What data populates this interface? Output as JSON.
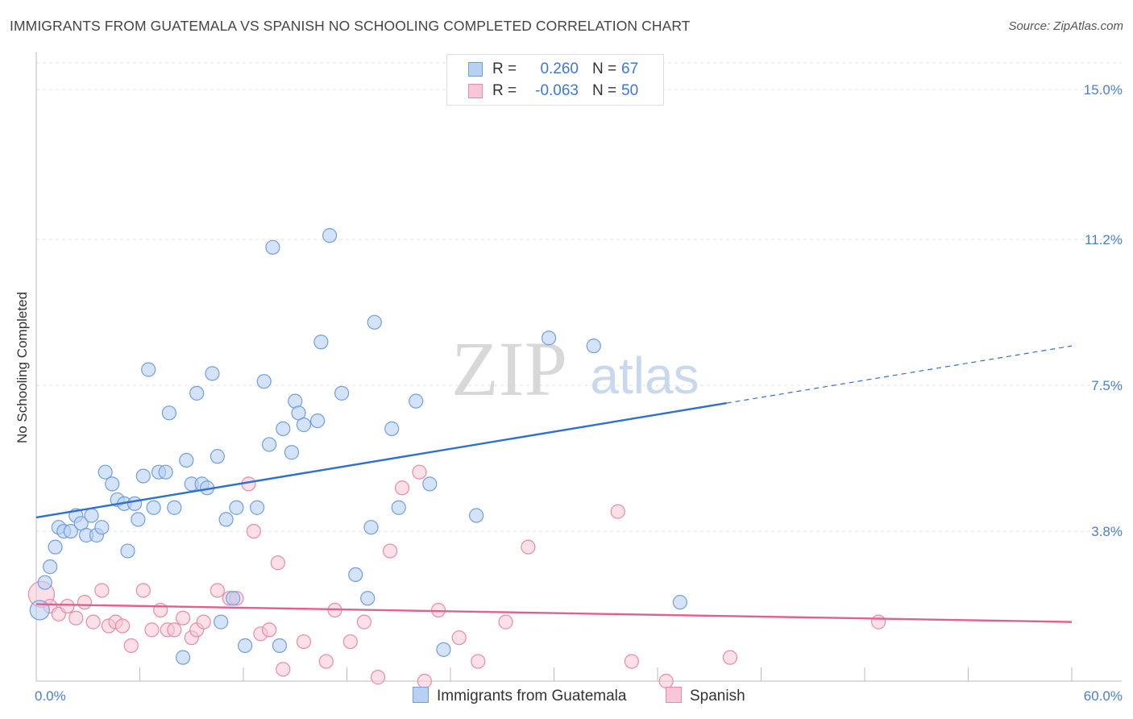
{
  "header": {
    "title": "IMMIGRANTS FROM GUATEMALA VS SPANISH NO SCHOOLING COMPLETED CORRELATION CHART",
    "source": "Source: ZipAtlas.com"
  },
  "watermark": {
    "zip": "ZIP",
    "atlas": "atlas"
  },
  "legend": {
    "rows": [
      {
        "r_label": "R =",
        "r_value": "0.260",
        "n_label": "N =",
        "n_value": "67"
      },
      {
        "r_label": "R =",
        "r_value": "-0.063",
        "n_label": "N =",
        "n_value": "50"
      }
    ]
  },
  "bottom_legend": {
    "series1": "Immigrants from Guatemala",
    "series2": "Spanish"
  },
  "colors": {
    "blue_fill": "#b8d0f4",
    "blue_stroke": "#6f9fe0",
    "blue_line": "#2f6fd0",
    "pink_fill": "#f8c6d6",
    "pink_stroke": "#e98aa8",
    "pink_line": "#e0628c",
    "axis_text": "#4a7fd0"
  },
  "chart_data": {
    "type": "scatter",
    "title": "IMMIGRANTS FROM GUATEMALA VS SPANISH NO SCHOOLING COMPLETED CORRELATION CHART",
    "xlabel": "",
    "ylabel": "No Schooling Completed",
    "xlim": [
      0,
      60
    ],
    "ylim": [
      0,
      15.8
    ],
    "x_tick_labels": [
      "0.0%",
      "60.0%"
    ],
    "y_ticks": [
      3.8,
      7.5,
      11.2,
      15.0
    ],
    "y_tick_labels": [
      "3.8%",
      "7.5%",
      "11.2%",
      "15.0%"
    ],
    "grid": "horizontal dashed",
    "legend_position": "top-center",
    "series": [
      {
        "name": "Immigrants from Guatemala",
        "r": 0.26,
        "n": 67,
        "trend": {
          "x0": 0,
          "y0": 4.15,
          "x1": 40,
          "y1": 7.05,
          "dashed_to_x": 60,
          "dashed_to_y": 8.5
        },
        "points": [
          [
            0.2,
            1.8
          ],
          [
            0.5,
            2.5
          ],
          [
            0.8,
            2.9
          ],
          [
            1.1,
            3.4
          ],
          [
            1.3,
            3.9
          ],
          [
            1.6,
            3.8
          ],
          [
            2.0,
            3.8
          ],
          [
            2.3,
            4.2
          ],
          [
            2.6,
            4.0
          ],
          [
            2.9,
            3.7
          ],
          [
            3.2,
            4.2
          ],
          [
            3.5,
            3.7
          ],
          [
            3.8,
            3.9
          ],
          [
            4.0,
            5.3
          ],
          [
            4.4,
            5.0
          ],
          [
            4.7,
            4.6
          ],
          [
            5.1,
            4.5
          ],
          [
            5.3,
            3.3
          ],
          [
            5.7,
            4.5
          ],
          [
            5.9,
            4.1
          ],
          [
            6.2,
            5.2
          ],
          [
            6.5,
            7.9
          ],
          [
            6.8,
            4.4
          ],
          [
            7.1,
            5.3
          ],
          [
            7.5,
            5.3
          ],
          [
            7.7,
            6.8
          ],
          [
            8.0,
            4.4
          ],
          [
            8.7,
            5.6
          ],
          [
            9.0,
            5.0
          ],
          [
            9.3,
            7.3
          ],
          [
            9.6,
            5.0
          ],
          [
            9.9,
            4.9
          ],
          [
            10.2,
            7.8
          ],
          [
            10.5,
            5.7
          ],
          [
            10.7,
            1.5
          ],
          [
            11.0,
            4.1
          ],
          [
            11.4,
            2.1
          ],
          [
            11.6,
            4.4
          ],
          [
            12.1,
            0.9
          ],
          [
            12.8,
            4.4
          ],
          [
            13.2,
            7.6
          ],
          [
            13.5,
            6.0
          ],
          [
            13.7,
            11.0
          ],
          [
            14.1,
            0.9
          ],
          [
            14.3,
            6.4
          ],
          [
            14.8,
            5.8
          ],
          [
            15.0,
            7.1
          ],
          [
            15.2,
            6.8
          ],
          [
            15.5,
            6.5
          ],
          [
            16.3,
            6.6
          ],
          [
            16.5,
            8.6
          ],
          [
            17.0,
            11.3
          ],
          [
            17.7,
            7.3
          ],
          [
            18.5,
            2.7
          ],
          [
            19.2,
            2.1
          ],
          [
            19.4,
            3.9
          ],
          [
            19.6,
            9.1
          ],
          [
            20.6,
            6.4
          ],
          [
            21.0,
            4.4
          ],
          [
            22.0,
            7.1
          ],
          [
            22.8,
            5.0
          ],
          [
            23.6,
            0.8
          ],
          [
            25.5,
            4.2
          ],
          [
            29.7,
            8.7
          ],
          [
            32.3,
            8.5
          ],
          [
            37.3,
            2.0
          ],
          [
            8.5,
            0.6
          ]
        ]
      },
      {
        "name": "Spanish",
        "r": -0.063,
        "n": 50,
        "trend": {
          "x0": 0,
          "y0": 1.95,
          "x1": 60,
          "y1": 1.5
        },
        "points": [
          [
            0.3,
            2.2
          ],
          [
            0.8,
            1.9
          ],
          [
            1.3,
            1.7
          ],
          [
            1.8,
            1.9
          ],
          [
            2.3,
            1.6
          ],
          [
            2.8,
            2.0
          ],
          [
            3.3,
            1.5
          ],
          [
            3.8,
            2.3
          ],
          [
            4.2,
            1.4
          ],
          [
            4.6,
            1.5
          ],
          [
            5.0,
            1.4
          ],
          [
            5.5,
            0.9
          ],
          [
            6.2,
            2.3
          ],
          [
            6.7,
            1.3
          ],
          [
            7.2,
            1.8
          ],
          [
            7.6,
            1.3
          ],
          [
            8.0,
            1.3
          ],
          [
            8.5,
            1.6
          ],
          [
            9.0,
            1.1
          ],
          [
            9.3,
            1.3
          ],
          [
            9.7,
            1.5
          ],
          [
            10.5,
            2.3
          ],
          [
            11.2,
            2.1
          ],
          [
            11.6,
            2.1
          ],
          [
            12.3,
            5.0
          ],
          [
            12.6,
            3.8
          ],
          [
            13.0,
            1.2
          ],
          [
            13.5,
            1.3
          ],
          [
            14.0,
            3.0
          ],
          [
            14.3,
            0.3
          ],
          [
            15.5,
            1.0
          ],
          [
            16.8,
            0.5
          ],
          [
            17.3,
            1.8
          ],
          [
            18.2,
            1.0
          ],
          [
            19.0,
            1.5
          ],
          [
            19.8,
            0.1
          ],
          [
            20.5,
            3.3
          ],
          [
            21.2,
            4.9
          ],
          [
            22.2,
            5.3
          ],
          [
            22.5,
            0.0
          ],
          [
            23.3,
            1.8
          ],
          [
            24.5,
            1.1
          ],
          [
            25.6,
            0.5
          ],
          [
            27.2,
            1.5
          ],
          [
            28.5,
            3.4
          ],
          [
            33.7,
            4.3
          ],
          [
            34.5,
            0.5
          ],
          [
            36.5,
            0.0
          ],
          [
            40.2,
            0.6
          ],
          [
            48.8,
            1.5
          ]
        ]
      }
    ]
  }
}
